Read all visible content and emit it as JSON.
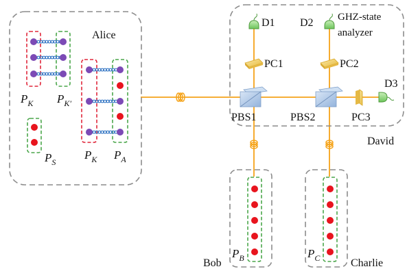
{
  "labels": {
    "alice": "Alice",
    "david": "David",
    "bob": "Bob",
    "charlie": "Charlie",
    "d1": "D1",
    "d2": "D2",
    "d3": "D3",
    "analyzer_line1": "GHZ-state",
    "analyzer_line2": "analyzer",
    "pc1": "PC1",
    "pc2": "PC2",
    "pc3": "PC3",
    "pbs1": "PBS1",
    "pbs2": "PBS2"
  },
  "sets": {
    "pk_main": "P",
    "pk_main_sub": "K",
    "pk_prime": "P",
    "pk_prime_sub": "K′",
    "ps": "P",
    "ps_sub": "S",
    "pk_second": "P",
    "pk_second_sub": "K",
    "pa": "P",
    "pa_sub": "A",
    "pb": "P",
    "pb_sub": "B",
    "pc": "P",
    "pc_sub": "C"
  },
  "colors": {
    "beam": "#f5a319",
    "entangled_photon": "#7c4ab5",
    "single_photon": "#e8141e",
    "key_group_border": "#e0263a",
    "party_group_border": "#4aa64a",
    "detector": "#8fd37a",
    "beam_splitter": "#a9c4e6",
    "polarization_controller": "#f3d36b"
  }
}
